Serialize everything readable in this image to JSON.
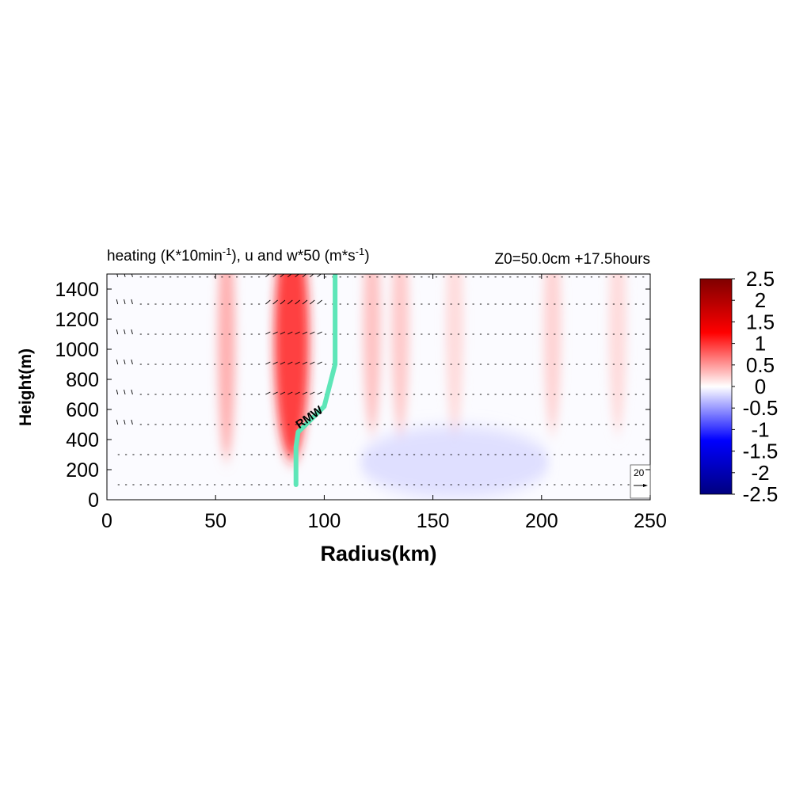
{
  "chart_data": {
    "type": "heatmap",
    "title_main": "heating (K*10min",
    "title_exp1": "-1",
    "title_mid": "), u and w*50 (m*s",
    "title_exp2": "-1",
    "title_end": ")",
    "subtitle": "Z0=50.0cm  +17.5hours",
    "xlabel": "Radius(km)",
    "ylabel": "Height(m)",
    "xlim": [
      0,
      250
    ],
    "ylim": [
      0,
      1500
    ],
    "xticks": [
      0,
      50,
      100,
      150,
      200,
      250
    ],
    "yticks": [
      0,
      200,
      400,
      600,
      800,
      1000,
      1200,
      1400
    ],
    "colorbar": {
      "range": [
        -2.5,
        2.5
      ],
      "ticks": [
        "2.5",
        "2",
        "1.5",
        "1",
        "0.5",
        "0",
        "-0.5",
        "-1",
        "-1.5",
        "-2",
        "-2.5"
      ],
      "colors": [
        "#7f0000",
        "#ff0000",
        "#ffffff",
        "#0000ff",
        "#00007f"
      ]
    },
    "heating_features": [
      {
        "r": 85,
        "z_center": 1000,
        "amplitude": 1.1
      },
      {
        "r": 55,
        "z_center": 1000,
        "amplitude": 0.45
      },
      {
        "r": 122,
        "z_center": 1100,
        "amplitude": 0.35
      },
      {
        "r": 135,
        "z_center": 1100,
        "amplitude": 0.3
      },
      {
        "r": 160,
        "z_center": 1100,
        "amplitude": 0.2
      },
      {
        "r": 205,
        "z_center": 1100,
        "amplitude": 0.25
      },
      {
        "r": 235,
        "z_center": 1100,
        "amplitude": 0.2
      },
      {
        "r": 160,
        "z_center": 250,
        "amplitude": -0.25
      }
    ],
    "vector_levels": [
      100,
      300,
      500,
      700,
      900,
      1100,
      1300,
      1480
    ],
    "reference_vector": {
      "label": "20",
      "value": 20
    },
    "rmw_line": {
      "label": "RMW",
      "color": "#5ee6b8",
      "points": [
        [
          87,
          100
        ],
        [
          87,
          350
        ],
        [
          88,
          450
        ],
        [
          100,
          620
        ],
        [
          105,
          900
        ],
        [
          105,
          1500
        ]
      ]
    }
  }
}
